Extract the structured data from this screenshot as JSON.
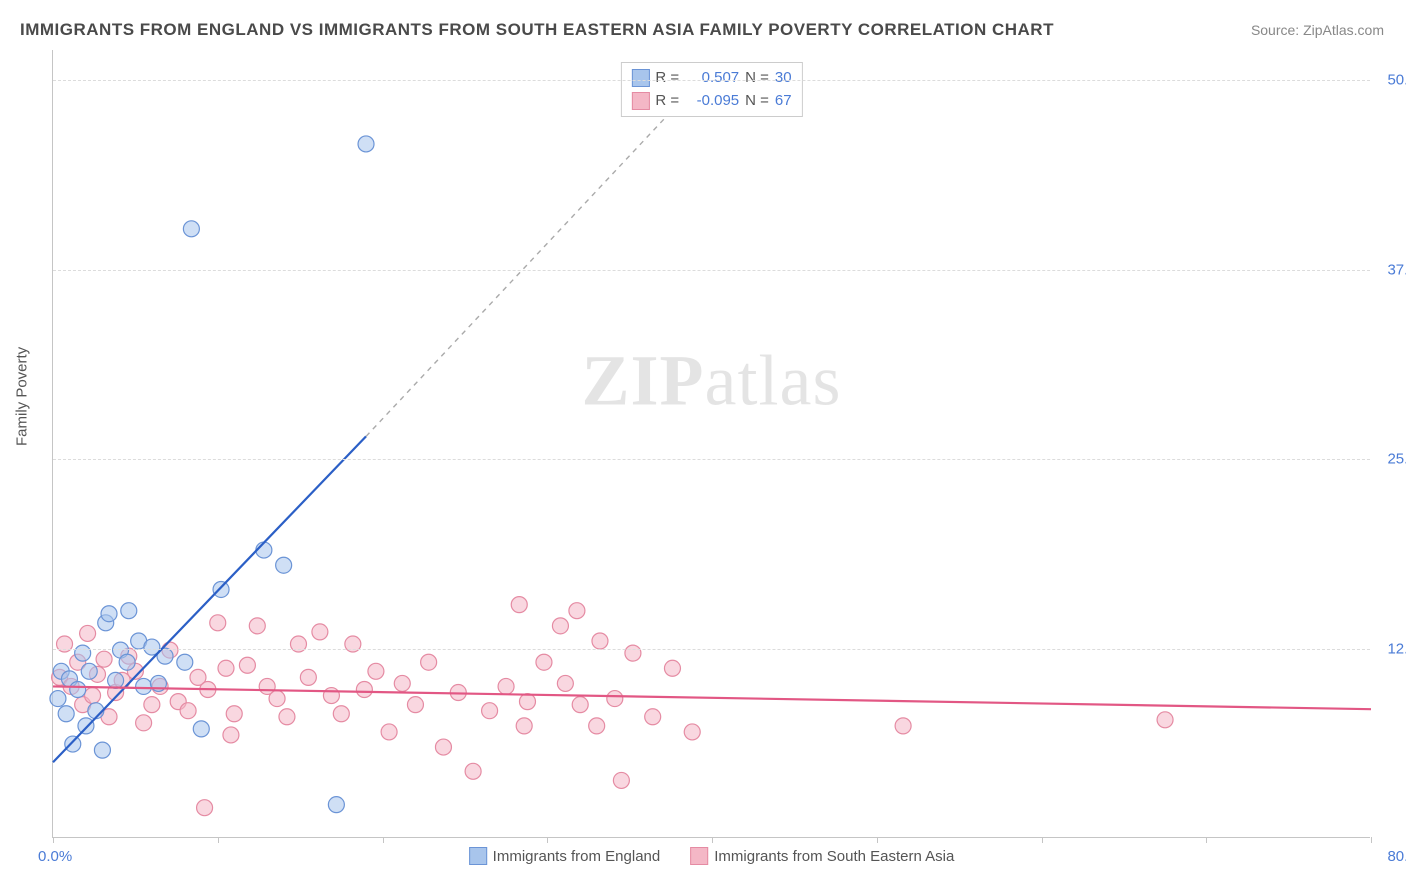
{
  "title": "IMMIGRANTS FROM ENGLAND VS IMMIGRANTS FROM SOUTH EASTERN ASIA FAMILY POVERTY CORRELATION CHART",
  "source": "Source: ZipAtlas.com",
  "ylabel": "Family Poverty",
  "watermark_zip": "ZIP",
  "watermark_atlas": "atlas",
  "chart": {
    "type": "scatter",
    "xlim": [
      0,
      80
    ],
    "ylim": [
      0,
      52
    ],
    "yticks": [
      12.5,
      25.0,
      37.5,
      50.0
    ],
    "ytick_labels": [
      "12.5%",
      "25.0%",
      "37.5%",
      "50.0%"
    ],
    "xticks": [
      0,
      10,
      20,
      30,
      40,
      50,
      60,
      70,
      80
    ],
    "xaxis_min_label": "0.0%",
    "xaxis_max_label": "80.0%",
    "background_color": "#ffffff",
    "grid_color": "#dcdcdc",
    "axis_color": "#c5c5c5",
    "marker_radius": 8,
    "series": [
      {
        "name": "Immigrants from England",
        "fill_color": "#a8c5ec",
        "fill_opacity": 0.55,
        "stroke_color": "#6b94d6",
        "trend_color": "#2b5fc6",
        "R_label": "R =",
        "R": "0.507",
        "N_label": "N =",
        "N": "30",
        "trend": {
          "x1": 0,
          "y1": 5.0,
          "x2_solid": 19,
          "y2_solid": 26.5,
          "x2_dash": 38,
          "y2_dash": 48.5
        },
        "points": [
          [
            0.3,
            9.2
          ],
          [
            0.5,
            11.0
          ],
          [
            0.8,
            8.2
          ],
          [
            1.0,
            10.5
          ],
          [
            1.2,
            6.2
          ],
          [
            1.5,
            9.8
          ],
          [
            1.8,
            12.2
          ],
          [
            2.0,
            7.4
          ],
          [
            2.2,
            11.0
          ],
          [
            2.6,
            8.4
          ],
          [
            3.0,
            5.8
          ],
          [
            3.2,
            14.2
          ],
          [
            3.4,
            14.8
          ],
          [
            3.8,
            10.4
          ],
          [
            4.1,
            12.4
          ],
          [
            4.5,
            11.6
          ],
          [
            4.6,
            15.0
          ],
          [
            5.2,
            13.0
          ],
          [
            5.5,
            10.0
          ],
          [
            6.0,
            12.6
          ],
          [
            6.4,
            10.2
          ],
          [
            6.8,
            12.0
          ],
          [
            8.0,
            11.6
          ],
          [
            8.4,
            40.2
          ],
          [
            9.0,
            7.2
          ],
          [
            10.2,
            16.4
          ],
          [
            12.8,
            19.0
          ],
          [
            14.0,
            18.0
          ],
          [
            17.2,
            2.2
          ],
          [
            19.0,
            45.8
          ]
        ]
      },
      {
        "name": "Immigrants from South Eastern Asia",
        "fill_color": "#f4b7c6",
        "fill_opacity": 0.55,
        "stroke_color": "#e58ba3",
        "trend_color": "#e25784",
        "R_label": "R =",
        "R": "-0.095",
        "N_label": "N =",
        "N": "67",
        "trend": {
          "x1": 0,
          "y1": 10.0,
          "x2_solid": 80,
          "y2_solid": 8.5,
          "x2_dash": 80,
          "y2_dash": 8.5
        },
        "points": [
          [
            0.4,
            10.6
          ],
          [
            0.7,
            12.8
          ],
          [
            1.1,
            10.0
          ],
          [
            1.5,
            11.6
          ],
          [
            1.8,
            8.8
          ],
          [
            2.1,
            13.5
          ],
          [
            2.4,
            9.4
          ],
          [
            2.7,
            10.8
          ],
          [
            3.1,
            11.8
          ],
          [
            3.4,
            8.0
          ],
          [
            3.8,
            9.6
          ],
          [
            4.2,
            10.4
          ],
          [
            4.6,
            12.0
          ],
          [
            5.0,
            11.0
          ],
          [
            5.5,
            7.6
          ],
          [
            6.0,
            8.8
          ],
          [
            6.5,
            10.0
          ],
          [
            7.1,
            12.4
          ],
          [
            7.6,
            9.0
          ],
          [
            8.2,
            8.4
          ],
          [
            8.8,
            10.6
          ],
          [
            9.4,
            9.8
          ],
          [
            10.0,
            14.2
          ],
          [
            10.5,
            11.2
          ],
          [
            10.8,
            6.8
          ],
          [
            11.0,
            8.2
          ],
          [
            11.8,
            11.4
          ],
          [
            12.4,
            14.0
          ],
          [
            13.0,
            10.0
          ],
          [
            13.6,
            9.2
          ],
          [
            14.2,
            8.0
          ],
          [
            14.9,
            12.8
          ],
          [
            15.5,
            10.6
          ],
          [
            16.2,
            13.6
          ],
          [
            16.9,
            9.4
          ],
          [
            17.5,
            8.2
          ],
          [
            18.2,
            12.8
          ],
          [
            18.9,
            9.8
          ],
          [
            19.6,
            11.0
          ],
          [
            20.4,
            7.0
          ],
          [
            21.2,
            10.2
          ],
          [
            22.0,
            8.8
          ],
          [
            22.8,
            11.6
          ],
          [
            23.7,
            6.0
          ],
          [
            24.6,
            9.6
          ],
          [
            25.5,
            4.4
          ],
          [
            26.5,
            8.4
          ],
          [
            27.5,
            10.0
          ],
          [
            28.3,
            15.4
          ],
          [
            28.6,
            7.4
          ],
          [
            28.8,
            9.0
          ],
          [
            29.8,
            11.6
          ],
          [
            30.8,
            14.0
          ],
          [
            31.1,
            10.2
          ],
          [
            31.8,
            15.0
          ],
          [
            32.0,
            8.8
          ],
          [
            33.0,
            7.4
          ],
          [
            33.2,
            13.0
          ],
          [
            34.1,
            9.2
          ],
          [
            34.5,
            3.8
          ],
          [
            35.2,
            12.2
          ],
          [
            36.4,
            8.0
          ],
          [
            37.6,
            11.2
          ],
          [
            38.8,
            7.0
          ],
          [
            51.6,
            7.4
          ],
          [
            67.5,
            7.8
          ],
          [
            9.2,
            2.0
          ]
        ]
      }
    ]
  },
  "legend_bottom": [
    "Immigrants from England",
    "Immigrants from South Eastern Asia"
  ]
}
